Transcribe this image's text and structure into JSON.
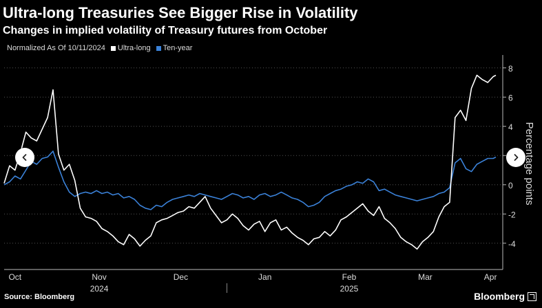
{
  "header": {
    "title": "Ultra-long Treasuries See Bigger Rise in Volatility",
    "subtitle": "Changes in implied volatility of Treasury futures from October"
  },
  "legend": {
    "note": "Normalized As Of 10/11/2024",
    "items": [
      {
        "label": "Ultra-long",
        "color": "#ffffff"
      },
      {
        "label": "Ten-year",
        "color": "#3b82d9"
      }
    ]
  },
  "footer": {
    "source": "Source: Bloomberg",
    "brand": "Bloomberg"
  },
  "nav": {
    "prev_icon": "chevron-left-icon",
    "next_icon": "chevron-right-icon"
  },
  "chart_data": {
    "type": "line",
    "title": "Ultra-long Treasuries See Bigger Rise in Volatility",
    "subtitle": "Changes in implied volatility of Treasury futures from October",
    "ylabel": "Percentage points",
    "ylim": [
      -5.8,
      8.6
    ],
    "yticks": [
      -4,
      -2,
      0,
      2,
      4,
      6,
      8
    ],
    "y_axis_side": "right",
    "grid": "horizontal-dotted",
    "xlim": [
      "2024-10-11",
      "2025-04-10"
    ],
    "x_month_ticks": [
      {
        "label": "Oct",
        "date": "2024-10-15"
      },
      {
        "label": "Nov",
        "date": "2024-11-15"
      },
      {
        "label": "Dec",
        "date": "2024-12-15"
      },
      {
        "label": "Jan",
        "date": "2025-01-15"
      },
      {
        "label": "Feb",
        "date": "2025-02-15"
      },
      {
        "label": "Mar",
        "date": "2025-03-15"
      },
      {
        "label": "Apr",
        "date": "2025-04-08"
      }
    ],
    "x_year_labels": [
      {
        "label": "2024",
        "date": "2024-11-15"
      },
      {
        "label": "2025",
        "date": "2025-02-15"
      }
    ],
    "year_divider": "2025-01-01",
    "series": [
      {
        "name": "Ultra-long",
        "color": "#ffffff",
        "x": [
          "2024-10-11",
          "2024-10-13",
          "2024-10-15",
          "2024-10-17",
          "2024-10-19",
          "2024-10-21",
          "2024-10-23",
          "2024-10-25",
          "2024-10-27",
          "2024-10-29",
          "2024-10-31",
          "2024-11-02",
          "2024-11-04",
          "2024-11-06",
          "2024-11-08",
          "2024-11-10",
          "2024-11-12",
          "2024-11-14",
          "2024-11-16",
          "2024-11-18",
          "2024-11-20",
          "2024-11-22",
          "2024-11-24",
          "2024-11-26",
          "2024-11-28",
          "2024-11-30",
          "2024-12-02",
          "2024-12-04",
          "2024-12-06",
          "2024-12-08",
          "2024-12-10",
          "2024-12-12",
          "2024-12-14",
          "2024-12-16",
          "2024-12-18",
          "2024-12-20",
          "2024-12-22",
          "2024-12-24",
          "2024-12-26",
          "2024-12-28",
          "2024-12-30",
          "2025-01-01",
          "2025-01-03",
          "2025-01-05",
          "2025-01-07",
          "2025-01-09",
          "2025-01-11",
          "2025-01-13",
          "2025-01-15",
          "2025-01-17",
          "2025-01-19",
          "2025-01-21",
          "2025-01-23",
          "2025-01-25",
          "2025-01-27",
          "2025-01-29",
          "2025-01-31",
          "2025-02-02",
          "2025-02-04",
          "2025-02-06",
          "2025-02-08",
          "2025-02-10",
          "2025-02-12",
          "2025-02-14",
          "2025-02-16",
          "2025-02-18",
          "2025-02-20",
          "2025-02-22",
          "2025-02-24",
          "2025-02-26",
          "2025-02-28",
          "2025-03-02",
          "2025-03-04",
          "2025-03-06",
          "2025-03-08",
          "2025-03-10",
          "2025-03-12",
          "2025-03-14",
          "2025-03-16",
          "2025-03-18",
          "2025-03-20",
          "2025-03-22",
          "2025-03-24",
          "2025-03-26",
          "2025-03-28",
          "2025-03-30",
          "2025-04-01",
          "2025-04-03",
          "2025-04-05",
          "2025-04-07",
          "2025-04-09",
          "2025-04-10"
        ],
        "values": [
          0.1,
          1.3,
          1.0,
          2.2,
          3.6,
          3.2,
          3.0,
          3.8,
          4.6,
          6.5,
          2.1,
          1.0,
          1.4,
          0.3,
          -1.6,
          -2.2,
          -2.3,
          -2.5,
          -3.0,
          -3.2,
          -3.5,
          -3.9,
          -4.1,
          -3.4,
          -3.7,
          -4.2,
          -3.8,
          -3.5,
          -2.6,
          -2.4,
          -2.3,
          -2.1,
          -1.9,
          -1.8,
          -1.5,
          -1.6,
          -1.2,
          -0.8,
          -1.6,
          -2.1,
          -2.6,
          -2.4,
          -2.0,
          -2.3,
          -2.8,
          -3.1,
          -2.7,
          -2.5,
          -3.2,
          -2.6,
          -2.4,
          -3.1,
          -2.9,
          -3.3,
          -3.6,
          -3.8,
          -4.1,
          -3.7,
          -3.6,
          -3.2,
          -3.5,
          -3.1,
          -2.4,
          -2.2,
          -1.9,
          -1.6,
          -1.3,
          -1.8,
          -2.1,
          -1.5,
          -2.3,
          -2.6,
          -3.0,
          -3.6,
          -3.9,
          -4.1,
          -4.4,
          -3.9,
          -3.6,
          -3.2,
          -2.2,
          -1.5,
          -1.2,
          4.6,
          5.1,
          4.4,
          6.6,
          7.5,
          7.2,
          7.0,
          7.4,
          7.5
        ]
      },
      {
        "name": "Ten-year",
        "color": "#3b82d9",
        "x": [
          "2024-10-11",
          "2024-10-13",
          "2024-10-15",
          "2024-10-17",
          "2024-10-19",
          "2024-10-21",
          "2024-10-23",
          "2024-10-25",
          "2024-10-27",
          "2024-10-29",
          "2024-10-31",
          "2024-11-02",
          "2024-11-04",
          "2024-11-06",
          "2024-11-08",
          "2024-11-10",
          "2024-11-12",
          "2024-11-14",
          "2024-11-16",
          "2024-11-18",
          "2024-11-20",
          "2024-11-22",
          "2024-11-24",
          "2024-11-26",
          "2024-11-28",
          "2024-11-30",
          "2024-12-02",
          "2024-12-04",
          "2024-12-06",
          "2024-12-08",
          "2024-12-10",
          "2024-12-12",
          "2024-12-14",
          "2024-12-16",
          "2024-12-18",
          "2024-12-20",
          "2024-12-22",
          "2024-12-24",
          "2024-12-26",
          "2024-12-28",
          "2024-12-30",
          "2025-01-01",
          "2025-01-03",
          "2025-01-05",
          "2025-01-07",
          "2025-01-09",
          "2025-01-11",
          "2025-01-13",
          "2025-01-15",
          "2025-01-17",
          "2025-01-19",
          "2025-01-21",
          "2025-01-23",
          "2025-01-25",
          "2025-01-27",
          "2025-01-29",
          "2025-01-31",
          "2025-02-02",
          "2025-02-04",
          "2025-02-06",
          "2025-02-08",
          "2025-02-10",
          "2025-02-12",
          "2025-02-14",
          "2025-02-16",
          "2025-02-18",
          "2025-02-20",
          "2025-02-22",
          "2025-02-24",
          "2025-02-26",
          "2025-02-28",
          "2025-03-02",
          "2025-03-04",
          "2025-03-06",
          "2025-03-08",
          "2025-03-10",
          "2025-03-12",
          "2025-03-14",
          "2025-03-16",
          "2025-03-18",
          "2025-03-20",
          "2025-03-22",
          "2025-03-24",
          "2025-03-26",
          "2025-03-28",
          "2025-03-30",
          "2025-04-01",
          "2025-04-03",
          "2025-04-05",
          "2025-04-07",
          "2025-04-09",
          "2025-04-10"
        ],
        "values": [
          0.0,
          0.2,
          0.6,
          0.4,
          1.0,
          1.6,
          1.4,
          1.8,
          1.9,
          2.3,
          1.2,
          0.2,
          -0.5,
          -0.8,
          -0.6,
          -0.5,
          -0.6,
          -0.4,
          -0.6,
          -0.5,
          -0.7,
          -0.6,
          -0.9,
          -0.8,
          -1.0,
          -1.4,
          -1.6,
          -1.7,
          -1.4,
          -1.5,
          -1.2,
          -1.0,
          -0.9,
          -0.8,
          -0.7,
          -0.8,
          -0.6,
          -0.7,
          -0.8,
          -0.9,
          -1.0,
          -0.8,
          -0.6,
          -0.7,
          -0.9,
          -0.8,
          -1.0,
          -0.7,
          -0.6,
          -0.8,
          -0.7,
          -0.5,
          -0.7,
          -0.9,
          -1.0,
          -1.2,
          -1.5,
          -1.4,
          -1.2,
          -0.8,
          -0.6,
          -0.4,
          -0.3,
          -0.1,
          0.0,
          0.2,
          0.1,
          0.4,
          0.2,
          -0.4,
          -0.3,
          -0.5,
          -0.7,
          -0.8,
          -0.9,
          -1.0,
          -1.1,
          -1.0,
          -0.9,
          -0.8,
          -0.6,
          -0.5,
          -0.2,
          1.5,
          1.8,
          1.1,
          0.9,
          1.4,
          1.6,
          1.8,
          1.8,
          1.9
        ]
      }
    ]
  }
}
